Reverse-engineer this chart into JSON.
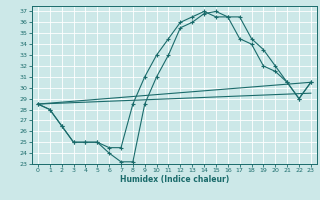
{
  "xlabel": "Humidex (Indice chaleur)",
  "xlim": [
    -0.5,
    23.5
  ],
  "ylim": [
    23,
    37.5
  ],
  "yticks": [
    23,
    24,
    25,
    26,
    27,
    28,
    29,
    30,
    31,
    32,
    33,
    34,
    35,
    36,
    37
  ],
  "xticks": [
    0,
    1,
    2,
    3,
    4,
    5,
    6,
    7,
    8,
    9,
    10,
    11,
    12,
    13,
    14,
    15,
    16,
    17,
    18,
    19,
    20,
    21,
    22,
    23
  ],
  "bg_color": "#cce8e8",
  "grid_color": "#ffffff",
  "line_color": "#1a6b6b",
  "line1_x": [
    0,
    1,
    2,
    3,
    4,
    5,
    6,
    7,
    8,
    9,
    10,
    11,
    12,
    13,
    14,
    15,
    16,
    17,
    18,
    19,
    20,
    21,
    22,
    23
  ],
  "line1_y": [
    28.5,
    28.0,
    26.5,
    25.0,
    25.0,
    25.0,
    24.0,
    23.2,
    23.2,
    28.5,
    31.0,
    33.0,
    35.5,
    36.0,
    36.8,
    37.0,
    36.5,
    36.5,
    34.5,
    33.5,
    32.0,
    30.5,
    29.0,
    30.5
  ],
  "line2_x": [
    0,
    1,
    2,
    3,
    4,
    5,
    6,
    7,
    8,
    9,
    10,
    11,
    12,
    13,
    14,
    15,
    16,
    17,
    18,
    19,
    20,
    21,
    22,
    23
  ],
  "line2_y": [
    28.5,
    28.0,
    26.5,
    25.0,
    25.0,
    25.0,
    24.5,
    24.5,
    28.5,
    31.0,
    33.0,
    34.5,
    36.0,
    36.5,
    37.0,
    36.5,
    36.5,
    34.5,
    34.0,
    32.0,
    31.5,
    30.5,
    29.0,
    30.5
  ],
  "line3_x": [
    0,
    23
  ],
  "line3_y": [
    28.5,
    30.5
  ],
  "line4_x": [
    0,
    23
  ],
  "line4_y": [
    28.5,
    29.5
  ],
  "tick_labelsize": 4.5,
  "xlabel_fontsize": 5.5
}
